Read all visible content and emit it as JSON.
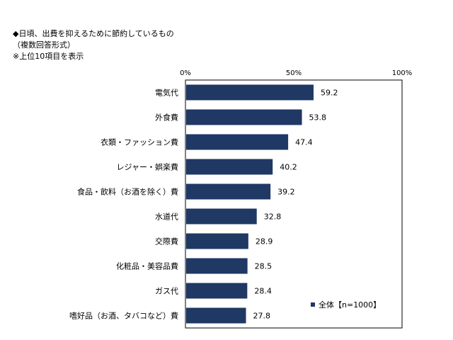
{
  "header": {
    "title": "◆日頃、出費を抑えるために節約しているもの",
    "subtitle": "（複数回答形式）",
    "note": "※上位10項目を表示"
  },
  "chart_data": {
    "type": "bar",
    "orientation": "horizontal",
    "categories": [
      "電気代",
      "外食費",
      "衣類・ファッション費",
      "レジャー・娯楽費",
      "食品・飲料（お酒を除く）費",
      "水道代",
      "交際費",
      "化粧品・美容品費",
      "ガス代",
      "嗜好品（お酒、タバコなど）費"
    ],
    "series": [
      {
        "name": "全体【n=1000】",
        "values": [
          59.2,
          53.8,
          47.4,
          40.2,
          39.2,
          32.8,
          28.9,
          28.5,
          28.4,
          27.8
        ],
        "labels": [
          "59.2",
          "53.8",
          "47.4",
          "40.2",
          "39.2",
          "32.8",
          "28.9",
          "28.5",
          "28.4",
          "27.8"
        ],
        "color": "#1f3864"
      }
    ],
    "xlim": [
      0,
      100
    ],
    "ticks": [
      "0%",
      "50%",
      "100%"
    ],
    "tick_values": [
      0,
      50,
      100
    ],
    "grid": false,
    "legend_position": "bottom-right"
  }
}
